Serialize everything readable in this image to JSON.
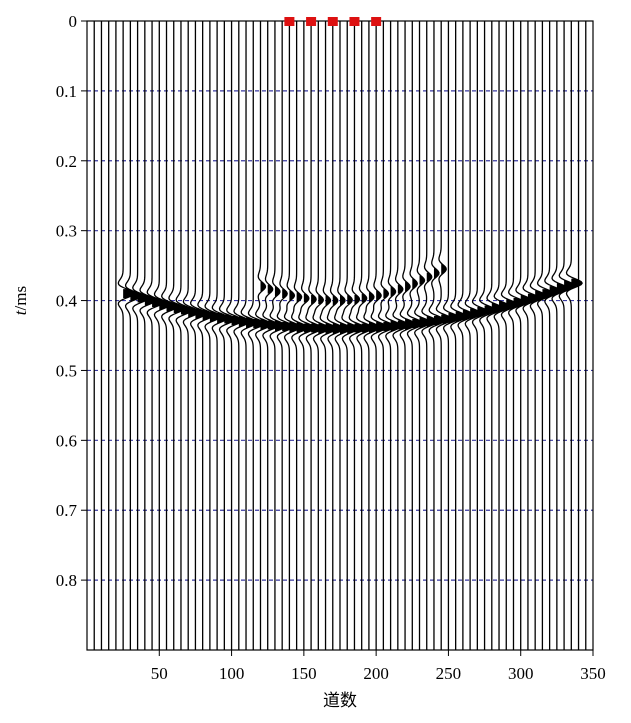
{
  "chart_data": {
    "type": "seismic-wiggle",
    "xlabel": "道数",
    "ylabel": "t/ms",
    "ylabel_italic": "t",
    "ylabel_rest": "/ms",
    "xlim": [
      0,
      350
    ],
    "ylim": [
      0,
      0.9
    ],
    "x_ticks": [
      50,
      100,
      150,
      200,
      250,
      300,
      350
    ],
    "y_ticks": [
      0,
      0.1,
      0.2,
      0.3,
      0.4,
      0.5,
      0.6,
      0.7,
      0.8
    ],
    "y_tick_labels": [
      "0",
      "0.1",
      "0.2",
      "0.3",
      "0.4",
      "0.5",
      "0.6",
      "0.7",
      "0.8"
    ],
    "trace_spacing": 5,
    "horizontal_gridlines": true,
    "gridline_color": "#3a3aa0",
    "trace_color": "#000000",
    "sources": {
      "x": [
        140,
        155,
        170,
        185,
        200
      ],
      "y": 0,
      "color": "#dd1111",
      "marker": "square"
    },
    "events": [
      {
        "name": "",
        "apex_trace": 170,
        "apex_time": 0.44,
        "end_traces": [
          25,
          335
        ],
        "end_time": 0.375,
        "strength": "strong"
      },
      {
        "name": "",
        "apex_trace": 170,
        "apex_time": 0.4,
        "end_traces": [
          120,
          245
        ],
        "end_time": 0.355,
        "strength": "weak"
      }
    ]
  }
}
